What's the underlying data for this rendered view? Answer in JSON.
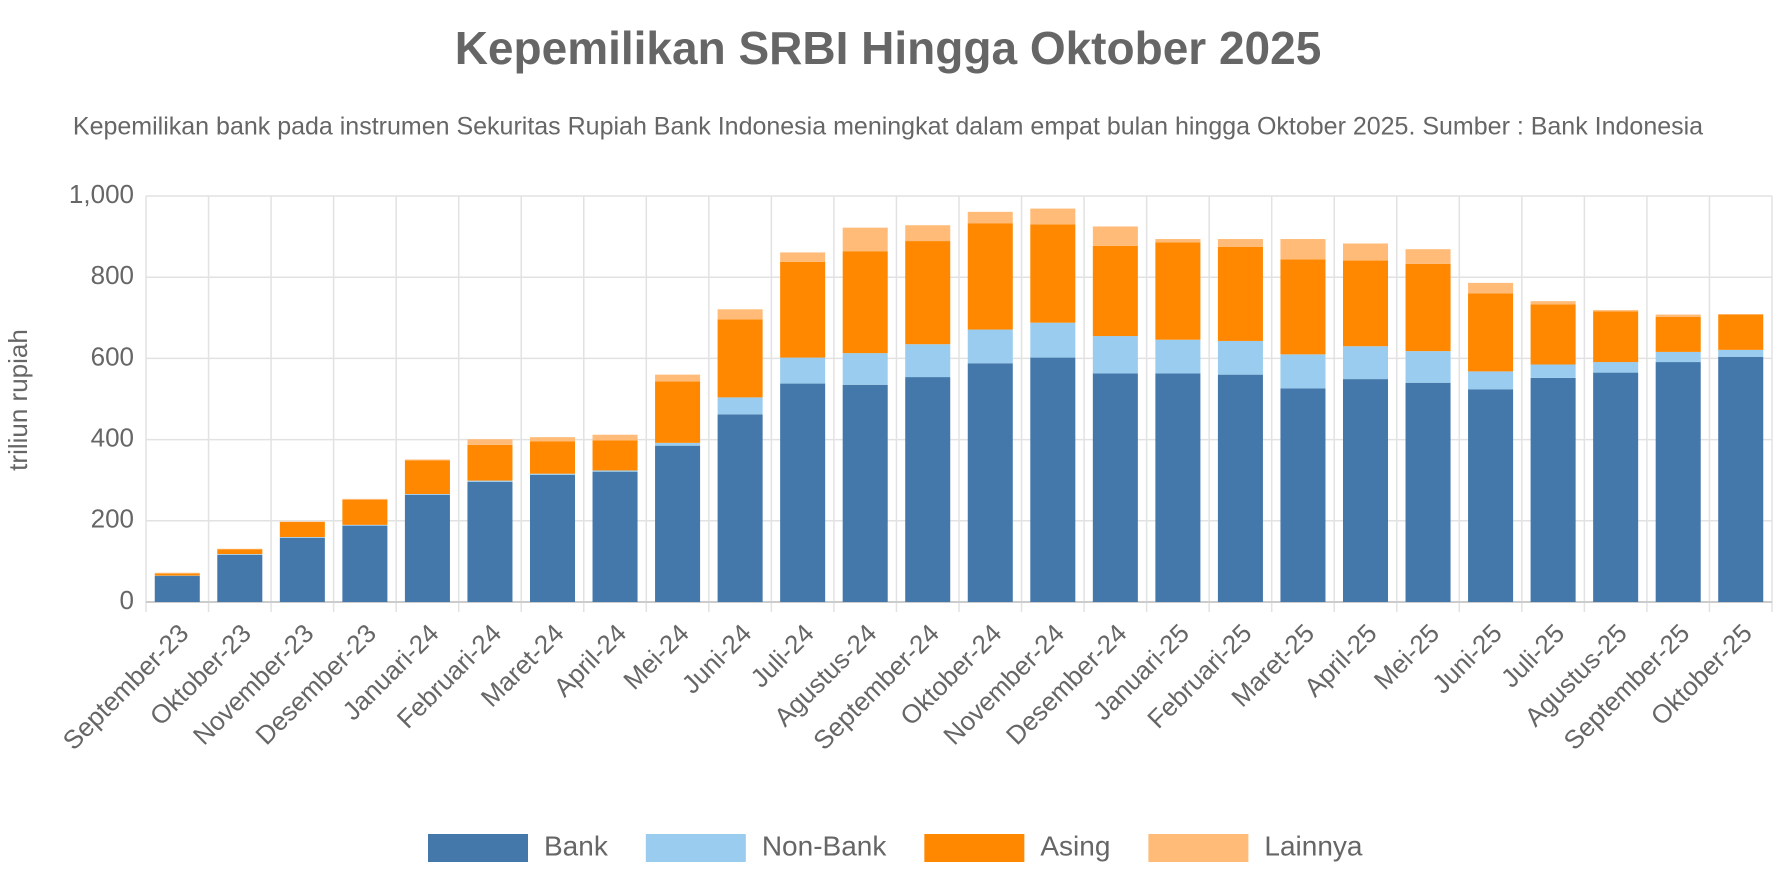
{
  "chart_data": {
    "type": "stacked_bar",
    "title": "Kepemilikan SRBI Hingga Oktober 2025",
    "subtitle": "Kepemilikan bank pada instrumen Sekuritas Rupiah Bank Indonesia meningkat dalam empat bulan hingga Oktober 2025. Sumber : Bank Indonesia",
    "y_label": "triliun rupiah",
    "categories": [
      "September-23",
      "Oktober-23",
      "November-23",
      "Desember-23",
      "Januari-24",
      "Februari-24",
      "Maret-24",
      "April-24",
      "Mei-24",
      "Juni-24",
      "Juli-24",
      "Agustus-24",
      "September-24",
      "Oktober-24",
      "November-24",
      "Desember-24",
      "Januari-25",
      "Februari-25",
      "Maret-25",
      "April-25",
      "Mei-25",
      "Juni-25",
      "Juli-25",
      "Agustus-25",
      "September-25",
      "Oktober-25"
    ],
    "series": [
      {
        "name": "Bank",
        "color": "#4477aa",
        "values": [
          64,
          116,
          158,
          188,
          264,
          296,
          313,
          321,
          385,
          462,
          538,
          535,
          554,
          588,
          602,
          563,
          563,
          560,
          526,
          549,
          540,
          524,
          552,
          565,
          591,
          604
        ]
      },
      {
        "name": "Non-Bank",
        "color": "#99ccee",
        "values": [
          1,
          2,
          2,
          2,
          2,
          3,
          3,
          3,
          7,
          42,
          64,
          78,
          81,
          83,
          86,
          92,
          83,
          83,
          84,
          81,
          78,
          44,
          33,
          26,
          25,
          17
        ]
      },
      {
        "name": "Asing",
        "color": "#ff8800",
        "values": [
          5,
          12,
          37,
          62,
          83,
          88,
          80,
          74,
          151,
          192,
          236,
          251,
          254,
          262,
          242,
          222,
          240,
          232,
          234,
          211,
          215,
          192,
          148,
          125,
          86,
          87
        ]
      },
      {
        "name": "Lainnya",
        "color": "#ffbb77",
        "values": [
          2,
          1,
          1,
          2,
          2,
          14,
          10,
          14,
          17,
          25,
          23,
          58,
          39,
          28,
          39,
          48,
          8,
          19,
          50,
          42,
          36,
          26,
          8,
          3,
          6,
          1
        ]
      }
    ],
    "ylim": [
      0,
      1000
    ],
    "yticks": [
      0,
      200,
      400,
      600,
      800,
      {
        "value": 1000,
        "label": "1,000"
      }
    ],
    "grid": true,
    "legend": "bottom"
  }
}
